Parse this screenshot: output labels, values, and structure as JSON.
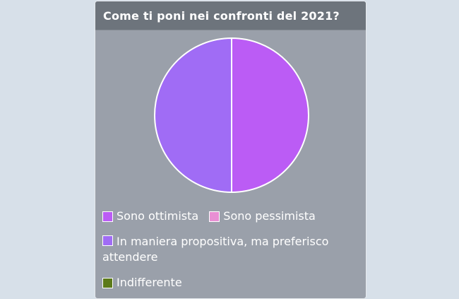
{
  "chart_data": {
    "type": "pie",
    "title": "Come ti poni nei confronti del 2021?",
    "categories": [
      "Sono ottimista",
      "Sono pessimista",
      "In maniera propositiva, ma preferisco attendere",
      "Indifferente"
    ],
    "values": [
      50,
      0,
      50,
      0
    ],
    "colors": [
      "#bb5cf5",
      "#e88fd4",
      "#a06cf5",
      "#5c7a1a"
    ],
    "legend": "bottom"
  }
}
